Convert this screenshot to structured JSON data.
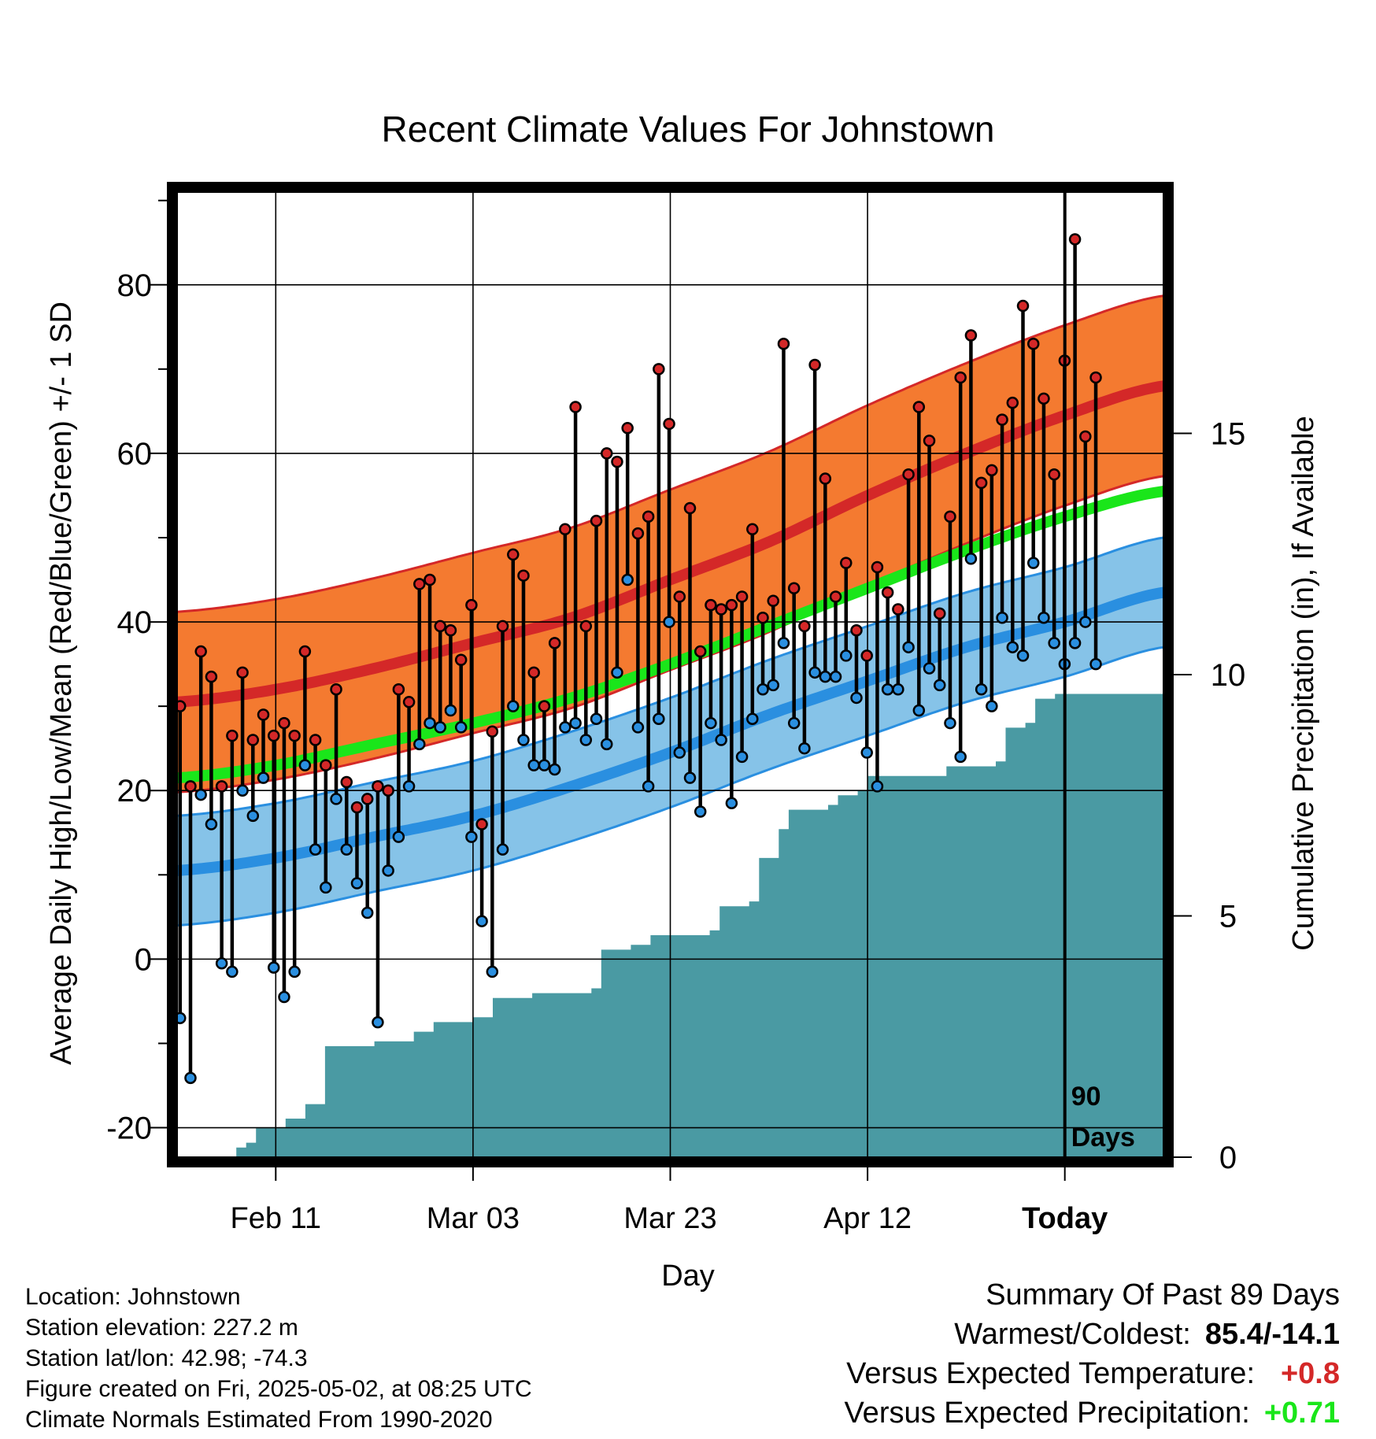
{
  "chart_data": {
    "type": "line",
    "title": "Recent Climate Values For Johnstown",
    "xlabel": "Day",
    "ylabel": "Average Daily High/Low/Mean (Red/Blue/Green) +/- 1 SD",
    "y2label": "Cumulative Precipitation (in), If Available",
    "xlim": [
      0,
      100
    ],
    "ylim": [
      -23.5,
      91
    ],
    "y2lim": [
      0,
      20
    ],
    "x_ticks": [
      {
        "x": 10,
        "label": "Feb 11"
      },
      {
        "x": 30,
        "label": "Mar 03"
      },
      {
        "x": 50,
        "label": "Mar 23"
      },
      {
        "x": 70,
        "label": "Apr 12"
      },
      {
        "x": 90,
        "label": "Today"
      }
    ],
    "y_ticks": [
      -20,
      0,
      20,
      40,
      60,
      80
    ],
    "y2_ticks": [
      0,
      5,
      10,
      15
    ],
    "today_x": 90,
    "today_annotation": [
      "90",
      "Days"
    ],
    "grid": true,
    "normals": {
      "x": [
        0,
        10,
        20,
        30,
        40,
        50,
        60,
        70,
        80,
        90,
        100
      ],
      "high": [
        30.5,
        32,
        34.5,
        37.5,
        40.5,
        45,
        49.5,
        55,
        60,
        64.5,
        68
      ],
      "high_sd": 10.7,
      "low": [
        10.5,
        12,
        14.5,
        17,
        20.5,
        24.5,
        29,
        33,
        37,
        40,
        43.5
      ],
      "low_sd": 6.5,
      "mean": [
        21.5,
        23,
        25.5,
        28,
        31,
        35,
        39.5,
        44,
        48.5,
        52.5,
        55.5
      ]
    },
    "series": [
      {
        "name": "High",
        "color": "#d42828",
        "values": [
          30,
          20.5,
          36.5,
          33.5,
          20.5,
          26.5,
          34,
          26,
          29,
          26.5,
          28,
          26.5,
          36.5,
          26,
          23,
          32,
          21,
          18,
          19,
          20.5,
          20,
          32,
          30.5,
          44.5,
          45,
          39.5,
          39,
          35.5,
          42,
          16,
          27,
          39.5,
          48,
          45.5,
          34,
          30,
          37.5,
          51,
          65.5,
          39.5,
          52,
          60,
          59,
          63,
          50.5,
          52.5,
          70,
          63.5,
          43,
          53.5,
          36.5,
          42,
          41.5,
          42,
          43,
          51,
          40.5,
          42.5,
          73,
          44,
          39.5,
          70.5,
          57,
          43,
          47,
          39,
          36,
          46.5,
          43.5,
          41.5,
          57.5,
          65.5,
          61.5,
          41,
          52.5,
          69,
          74,
          56.5,
          58,
          64,
          66,
          77.5,
          73,
          66.5,
          57.5,
          71,
          85.4,
          62,
          69
        ]
      },
      {
        "name": "Low",
        "color": "#2a8fe0",
        "values": [
          -7,
          -14.1,
          19.5,
          16,
          -0.5,
          -1.5,
          20,
          17,
          21.5,
          -1,
          -4.5,
          -1.5,
          23,
          13,
          8.5,
          19,
          13,
          9,
          5.5,
          -7.5,
          10.5,
          14.5,
          20.5,
          25.5,
          28,
          27.5,
          29.5,
          27.5,
          14.5,
          4.5,
          -1.5,
          13,
          30,
          26,
          23,
          23,
          22.5,
          27.5,
          28,
          26,
          28.5,
          25.5,
          34,
          45,
          27.5,
          20.5,
          28.5,
          40,
          24.5,
          21.5,
          17.5,
          28,
          26,
          18.5,
          24,
          28.5,
          32,
          32.5,
          37.5,
          28,
          25,
          34,
          33.5,
          33.5,
          36,
          31,
          24.5,
          20.5,
          32,
          32,
          37,
          29.5,
          34.5,
          32.5,
          28,
          24,
          47.5,
          32,
          30,
          40.5,
          37,
          36,
          47,
          40.5,
          37.5,
          35,
          37.5,
          40,
          35
        ]
      }
    ],
    "precip_cumulative": [
      {
        "x": 0,
        "y": 0
      },
      {
        "x": 5,
        "y": 0
      },
      {
        "x": 6,
        "y": 0.2
      },
      {
        "x": 7,
        "y": 0.3
      },
      {
        "x": 8,
        "y": 0.6
      },
      {
        "x": 10,
        "y": 0.6
      },
      {
        "x": 11,
        "y": 0.8
      },
      {
        "x": 13,
        "y": 1.1
      },
      {
        "x": 15,
        "y": 2.3
      },
      {
        "x": 20,
        "y": 2.4
      },
      {
        "x": 24,
        "y": 2.6
      },
      {
        "x": 26,
        "y": 2.8
      },
      {
        "x": 30,
        "y": 2.9
      },
      {
        "x": 32,
        "y": 3.3
      },
      {
        "x": 36,
        "y": 3.4
      },
      {
        "x": 42,
        "y": 3.5
      },
      {
        "x": 43,
        "y": 4.3
      },
      {
        "x": 46,
        "y": 4.4
      },
      {
        "x": 48,
        "y": 4.6
      },
      {
        "x": 54,
        "y": 4.7
      },
      {
        "x": 55,
        "y": 5.2
      },
      {
        "x": 58,
        "y": 5.3
      },
      {
        "x": 59,
        "y": 6.2
      },
      {
        "x": 61,
        "y": 6.8
      },
      {
        "x": 62,
        "y": 7.2
      },
      {
        "x": 66,
        "y": 7.3
      },
      {
        "x": 67,
        "y": 7.5
      },
      {
        "x": 69,
        "y": 7.6
      },
      {
        "x": 70,
        "y": 7.9
      },
      {
        "x": 78,
        "y": 8.1
      },
      {
        "x": 83,
        "y": 8.2
      },
      {
        "x": 84,
        "y": 8.9
      },
      {
        "x": 86,
        "y": 9.0
      },
      {
        "x": 87,
        "y": 9.5
      },
      {
        "x": 89,
        "y": 9.6
      },
      {
        "x": 100,
        "y": 9.6
      }
    ],
    "colors": {
      "high_band": "#f47a30",
      "high_line": "#d42828",
      "low_band": "#86c3e8",
      "low_line": "#2a8fe0",
      "mean_line": "#1ae61a",
      "precip": "#4a9aa3",
      "frame": "#000000"
    }
  },
  "footer": {
    "lines": [
      "Location: Johnstown",
      "Station elevation: 227.2 m",
      "Station lat/lon: 42.98; -74.3",
      "Figure created on Fri, 2025-05-02, at 08:25 UTC",
      "Climate Normals Estimated From 1990-2020"
    ]
  },
  "summary": {
    "title": "Summary Of Past 89 Days",
    "warm_cold_label": "Warmest/Coldest:",
    "warm_cold_value": "85.4/-14.1",
    "temp_label": "Versus Expected Temperature:",
    "temp_value": "+0.8",
    "temp_color": "#d42828",
    "precip_label": "Versus Expected Precipitation:",
    "precip_value": "+0.71",
    "precip_color": "#1ae61a"
  }
}
